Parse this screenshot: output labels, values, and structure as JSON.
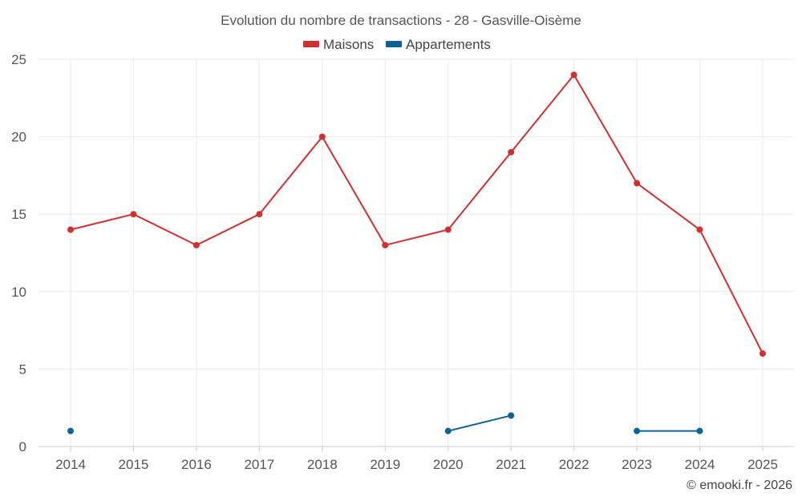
{
  "chart_data": {
    "type": "line",
    "title": "Evolution du nombre de transactions - 28 - Gasville-Oisème",
    "categories": [
      "2014",
      "2015",
      "2016",
      "2017",
      "2018",
      "2019",
      "2020",
      "2021",
      "2022",
      "2023",
      "2024",
      "2025"
    ],
    "series": [
      {
        "name": "Maisons",
        "color": "#d32f2f",
        "values": [
          14,
          15,
          13,
          15,
          20,
          13,
          14,
          19,
          24,
          17,
          14,
          6
        ]
      },
      {
        "name": "Appartements",
        "color": "#0a6399",
        "values": [
          1,
          null,
          null,
          null,
          null,
          null,
          1,
          2,
          null,
          1,
          1,
          null
        ]
      }
    ],
    "ylim": [
      0,
      25
    ],
    "yticks": [
      "0",
      "5",
      "10",
      "15",
      "20",
      "25"
    ],
    "ytick_values": [
      0,
      5,
      10,
      15,
      20,
      25
    ],
    "xlabel": "",
    "ylabel": "",
    "grid": true,
    "legend": "top-center",
    "credit": "© emooki.fr - 2026"
  }
}
